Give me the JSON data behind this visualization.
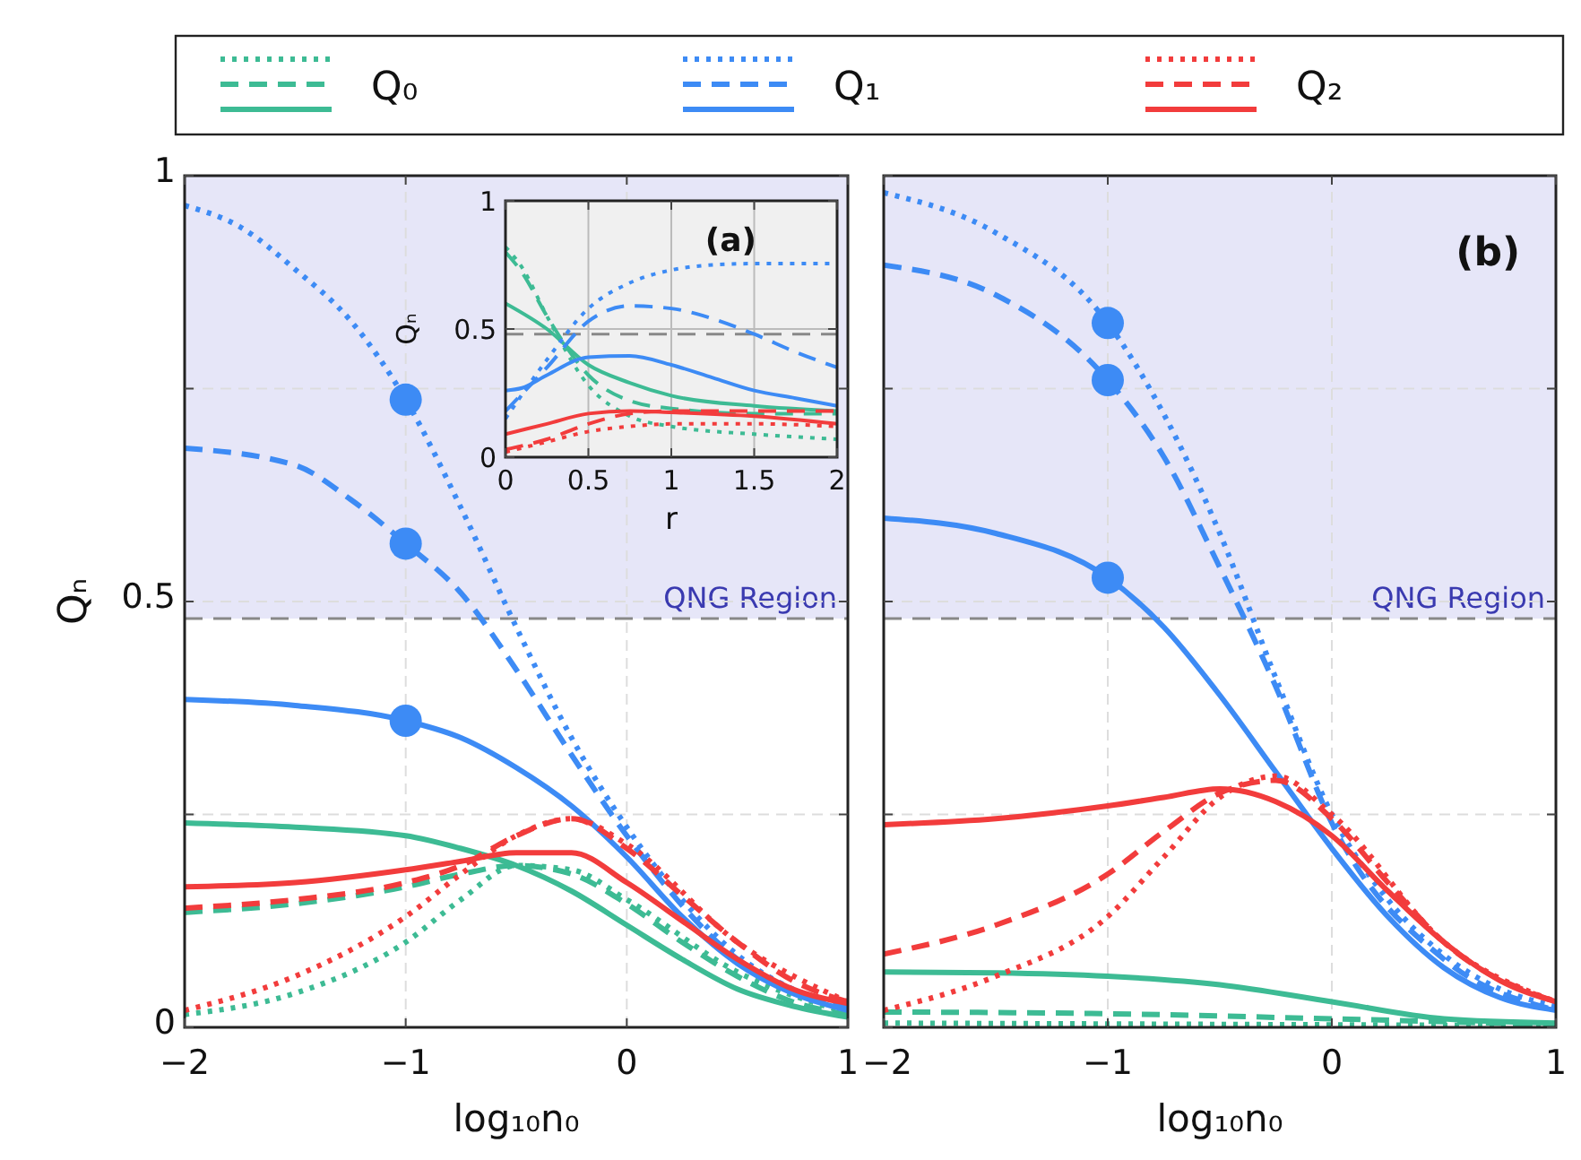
{
  "chart_data": [
    {
      "type": "line",
      "xlabel": "log₁₀n₀",
      "ylabel": "Qₙ",
      "xlim": [
        -2,
        1
      ],
      "ylim": [
        0,
        1
      ],
      "xticks": [
        -2,
        -1,
        0,
        1
      ],
      "yticks": [
        0,
        {
          "value": 0.25,
          "label": null
        },
        0.5,
        {
          "value": 0.75,
          "label": null
        },
        1
      ],
      "grid": true,
      "legend": "top",
      "bands": [
        {
          "axis": "y",
          "from": 0.48,
          "to": 1,
          "label": "QNG Region",
          "color": "#e6e6f8"
        }
      ],
      "ref_lines": [
        {
          "axis": "y",
          "value": 0.48,
          "color": "#888888",
          "line_style": "dashed"
        }
      ],
      "series": [
        {
          "name": "Q₀",
          "color": "#3dbb94",
          "line_style": "dotted",
          "x": [
            -2,
            -1.5,
            -1,
            -0.75,
            -0.5,
            -0.25,
            0,
            0.5,
            1
          ],
          "values": [
            0.015,
            0.04,
            0.1,
            0.15,
            0.19,
            0.185,
            0.15,
            0.065,
            0.017
          ]
        },
        {
          "color": "#3dbb94",
          "line_style": "dashed",
          "x": [
            -2,
            -1.5,
            -1,
            -0.75,
            -0.5,
            -0.25,
            0,
            0.25,
            0.5,
            0.75,
            1
          ],
          "values": [
            0.135,
            0.145,
            0.165,
            0.18,
            0.19,
            0.18,
            0.145,
            0.1,
            0.06,
            0.03,
            0.015
          ]
        },
        {
          "color": "#3dbb94",
          "line_style": "solid",
          "x": [
            -2,
            -1.5,
            -1,
            -0.75,
            -0.5,
            -0.25,
            0,
            0.25,
            0.5,
            0.75,
            1
          ],
          "values": [
            0.24,
            0.235,
            0.225,
            0.21,
            0.19,
            0.16,
            0.12,
            0.08,
            0.045,
            0.025,
            0.012
          ]
        },
        {
          "name": "Q₁",
          "color": "#3d8bf5",
          "line_style": "dotted",
          "x": [
            -2,
            -1.75,
            -1.5,
            -1.25,
            -1,
            -0.75,
            -0.5,
            -0.25,
            0,
            0.25,
            0.5,
            0.75,
            1
          ],
          "values": [
            0.965,
            0.94,
            0.89,
            0.83,
            0.737,
            0.61,
            0.47,
            0.34,
            0.235,
            0.15,
            0.085,
            0.045,
            0.025
          ]
        },
        {
          "color": "#3d8bf5",
          "line_style": "dashed",
          "x": [
            -2,
            -1.5,
            -1.25,
            -1,
            -0.75,
            -0.5,
            -0.25,
            0,
            0.5,
            1
          ],
          "values": [
            0.68,
            0.66,
            0.62,
            0.568,
            0.51,
            0.42,
            0.32,
            0.225,
            0.08,
            0.025
          ]
        },
        {
          "color": "#3d8bf5",
          "line_style": "solid",
          "x": [
            -2,
            -1.5,
            -1,
            -0.75,
            -0.5,
            -0.25,
            0,
            0.25,
            0.5,
            0.75,
            1
          ],
          "values": [
            0.385,
            0.378,
            0.36,
            0.34,
            0.305,
            0.26,
            0.2,
            0.13,
            0.075,
            0.04,
            0.02
          ]
        },
        {
          "name": "Q₂",
          "color": "#f23c3c",
          "line_style": "dotted",
          "x": [
            -2,
            -1.5,
            -1,
            -0.75,
            -0.5,
            -0.25,
            0,
            0.5,
            1
          ],
          "values": [
            0.02,
            0.06,
            0.13,
            0.18,
            0.225,
            0.245,
            0.215,
            0.1,
            0.03
          ]
        },
        {
          "color": "#f23c3c",
          "line_style": "dashed",
          "x": [
            -2,
            -1.5,
            -1,
            -0.75,
            -0.5,
            -0.25,
            0,
            0.25,
            0.5,
            0.75,
            1
          ],
          "values": [
            0.14,
            0.15,
            0.17,
            0.19,
            0.225,
            0.245,
            0.21,
            0.155,
            0.1,
            0.055,
            0.03
          ]
        },
        {
          "color": "#f23c3c",
          "line_style": "solid",
          "x": [
            -2,
            -1.5,
            -1,
            -0.75,
            -0.5,
            -0.25,
            0,
            0.25,
            0.5,
            0.75,
            1
          ],
          "values": [
            0.165,
            0.17,
            0.185,
            0.195,
            0.205,
            0.205,
            0.17,
            0.125,
            0.08,
            0.045,
            0.028
          ]
        },
        {
          "type": "scatter",
          "marker": "circle",
          "color": "#3d8bf5",
          "x": [
            -1,
            -1,
            -1
          ],
          "values": [
            0.737,
            0.568,
            0.36
          ]
        }
      ]
    },
    {
      "type": "line",
      "xlabel": "r",
      "ylabel": "Qₙ",
      "xlim": [
        0,
        2
      ],
      "ylim": [
        0,
        1
      ],
      "xticks": [
        0,
        0.5,
        1,
        1.5,
        2
      ],
      "yticks": [
        0,
        0.5,
        1
      ],
      "grid": true,
      "annotations": [
        "(a)"
      ],
      "ref_lines": [
        {
          "axis": "y",
          "value": 0.48,
          "color": "#888888",
          "line_style": "dashed"
        }
      ],
      "series": [
        {
          "color": "#3dbb94",
          "line_style": "dotted",
          "x": [
            0,
            0.1,
            0.25,
            0.5,
            0.75,
            1,
            1.5,
            2
          ],
          "values": [
            0.82,
            0.74,
            0.55,
            0.28,
            0.16,
            0.12,
            0.09,
            0.07
          ]
        },
        {
          "color": "#3dbb94",
          "line_style": "dashed",
          "x": [
            0,
            0.1,
            0.25,
            0.5,
            0.75,
            1,
            1.5,
            2
          ],
          "values": [
            0.8,
            0.72,
            0.55,
            0.32,
            0.22,
            0.19,
            0.17,
            0.17
          ]
        },
        {
          "color": "#3dbb94",
          "line_style": "solid",
          "x": [
            0,
            0.25,
            0.5,
            0.75,
            1,
            1.5,
            2
          ],
          "values": [
            0.6,
            0.5,
            0.36,
            0.29,
            0.24,
            0.2,
            0.18
          ]
        },
        {
          "color": "#3d8bf5",
          "line_style": "dotted",
          "x": [
            0,
            0.25,
            0.5,
            0.75,
            1,
            1.25,
            1.5,
            2
          ],
          "values": [
            0.15,
            0.38,
            0.58,
            0.68,
            0.73,
            0.75,
            0.755,
            0.755
          ]
        },
        {
          "color": "#3d8bf5",
          "line_style": "dashed",
          "x": [
            0,
            0.25,
            0.5,
            0.75,
            1,
            1.25,
            1.5,
            1.75,
            2
          ],
          "values": [
            0.18,
            0.35,
            0.53,
            0.59,
            0.58,
            0.54,
            0.48,
            0.41,
            0.35
          ]
        },
        {
          "color": "#3d8bf5",
          "line_style": "solid",
          "x": [
            0,
            0.1,
            0.25,
            0.5,
            0.75,
            1,
            1.25,
            1.5,
            1.75,
            2
          ],
          "values": [
            0.26,
            0.27,
            0.32,
            0.39,
            0.395,
            0.36,
            0.31,
            0.26,
            0.23,
            0.2
          ]
        },
        {
          "color": "#f23c3c",
          "line_style": "dotted",
          "x": [
            0,
            0.25,
            0.5,
            0.75,
            1,
            1.5,
            2
          ],
          "values": [
            0.02,
            0.06,
            0.1,
            0.12,
            0.13,
            0.13,
            0.12
          ]
        },
        {
          "color": "#f23c3c",
          "line_style": "dashed",
          "x": [
            0,
            0.25,
            0.5,
            0.75,
            1,
            1.5,
            2
          ],
          "values": [
            0.03,
            0.07,
            0.13,
            0.17,
            0.18,
            0.18,
            0.18
          ]
        },
        {
          "color": "#f23c3c",
          "line_style": "solid",
          "x": [
            0,
            0.25,
            0.5,
            0.75,
            1,
            1.5,
            2
          ],
          "values": [
            0.09,
            0.13,
            0.17,
            0.18,
            0.175,
            0.16,
            0.13
          ]
        }
      ]
    },
    {
      "type": "line",
      "xlabel": "log₁₀n₀",
      "xlim": [
        -2,
        1
      ],
      "ylim": [
        0,
        1
      ],
      "xticks": [
        -2,
        -1,
        0,
        1
      ],
      "yticks": [
        0,
        0.25,
        0.5,
        0.75,
        1
      ],
      "tick_labels": "x",
      "grid": true,
      "annotations": [
        "(b)"
      ],
      "bands": [
        {
          "axis": "y",
          "from": 0.48,
          "to": 1,
          "label": "QNG Region",
          "color": "#e6e6f8"
        }
      ],
      "ref_lines": [
        {
          "axis": "y",
          "value": 0.48,
          "color": "#888888",
          "line_style": "dashed"
        }
      ],
      "series": [
        {
          "color": "#3dbb94",
          "line_style": "dotted",
          "x": [
            -2,
            -1,
            0,
            1
          ],
          "values": [
            0.005,
            0.004,
            0.003,
            0.002
          ]
        },
        {
          "color": "#3dbb94",
          "line_style": "dashed",
          "x": [
            -2,
            -1,
            0,
            1
          ],
          "values": [
            0.018,
            0.016,
            0.01,
            0.003
          ]
        },
        {
          "color": "#3dbb94",
          "line_style": "solid",
          "x": [
            -2,
            -1.5,
            -1,
            -0.5,
            0,
            0.5,
            1
          ],
          "values": [
            0.065,
            0.064,
            0.06,
            0.05,
            0.03,
            0.01,
            0.005
          ]
        },
        {
          "color": "#3d8bf5",
          "line_style": "dotted",
          "x": [
            -2,
            -1.5,
            -1,
            -0.75,
            -0.5,
            -0.25,
            0,
            0.25,
            0.5,
            0.75,
            1
          ],
          "values": [
            0.98,
            0.933,
            0.827,
            0.72,
            0.58,
            0.41,
            0.25,
            0.15,
            0.085,
            0.045,
            0.025
          ]
        },
        {
          "color": "#3d8bf5",
          "line_style": "dashed",
          "x": [
            -2,
            -1.5,
            -1,
            -0.75,
            -0.5,
            -0.25,
            0,
            0.5,
            1
          ],
          "values": [
            0.895,
            0.86,
            0.76,
            0.67,
            0.54,
            0.4,
            0.24,
            0.08,
            0.02
          ]
        },
        {
          "color": "#3d8bf5",
          "line_style": "solid",
          "x": [
            -2,
            -1.5,
            -1,
            -0.75,
            -0.5,
            -0.25,
            0,
            0.25,
            0.5,
            0.75,
            1
          ],
          "values": [
            0.598,
            0.58,
            0.528,
            0.47,
            0.39,
            0.3,
            0.21,
            0.13,
            0.07,
            0.035,
            0.02
          ]
        },
        {
          "color": "#f23c3c",
          "line_style": "dotted",
          "x": [
            -2,
            -1.5,
            -1,
            -0.75,
            -0.5,
            -0.25,
            0,
            0.5,
            1
          ],
          "values": [
            0.02,
            0.06,
            0.13,
            0.2,
            0.27,
            0.295,
            0.25,
            0.1,
            0.03
          ]
        },
        {
          "color": "#f23c3c",
          "line_style": "dashed",
          "x": [
            -2,
            -1.5,
            -1,
            -0.75,
            -0.5,
            -0.25,
            0,
            0.25,
            0.5,
            1
          ],
          "values": [
            0.086,
            0.12,
            0.18,
            0.23,
            0.275,
            0.29,
            0.245,
            0.17,
            0.1,
            0.03
          ]
        },
        {
          "color": "#f23c3c",
          "line_style": "solid",
          "x": [
            -2,
            -1.5,
            -1,
            -0.75,
            -0.5,
            -0.25,
            0,
            0.25,
            0.5,
            0.75,
            1
          ],
          "values": [
            0.238,
            0.245,
            0.26,
            0.27,
            0.28,
            0.265,
            0.225,
            0.16,
            0.1,
            0.055,
            0.03
          ]
        },
        {
          "type": "scatter",
          "marker": "circle",
          "color": "#3d8bf5",
          "x": [
            -1,
            -1,
            -1
          ],
          "values": [
            0.827,
            0.76,
            0.528
          ]
        }
      ]
    }
  ]
}
